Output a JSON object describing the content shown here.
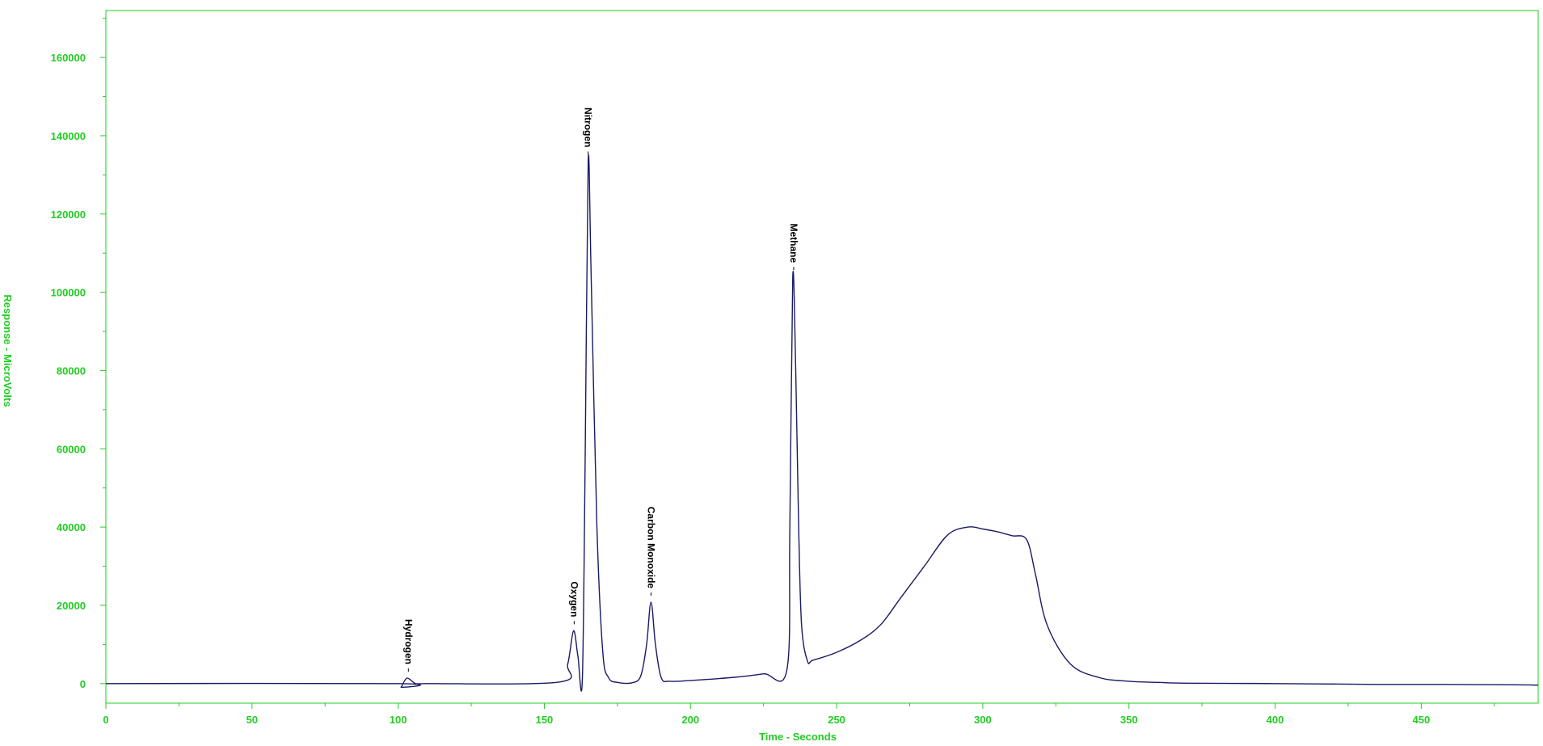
{
  "chart_data": {
    "type": "line",
    "xlabel": "Time - Seconds",
    "ylabel": "Response - MicroVolts",
    "xlim": [
      0,
      490
    ],
    "ylim": [
      -5000,
      172000
    ],
    "x_ticks": [
      0,
      50,
      100,
      150,
      200,
      250,
      300,
      350,
      400,
      450
    ],
    "y_ticks": [
      0,
      20000,
      40000,
      60000,
      80000,
      100000,
      120000,
      140000,
      160000
    ],
    "x_tick_labels": [
      "0",
      "50",
      "100",
      "150",
      "200",
      "250",
      "300",
      "350",
      "400",
      "450"
    ],
    "y_tick_labels": [
      "0",
      "20000",
      "40000",
      "60000",
      "80000",
      "100000",
      "120000",
      "140000",
      "160000"
    ],
    "grid": false,
    "colors": {
      "axis": "#22cc22",
      "trace": "#1a1a66",
      "label": "#000000"
    },
    "series": [
      {
        "x": [
          0,
          100,
          101,
          103,
          106,
          110,
          155,
          158,
          160,
          161.5,
          163,
          164,
          165,
          166,
          168,
          170,
          172,
          175,
          180,
          183,
          185,
          186.5,
          188,
          190,
          193,
          200,
          215,
          225,
          233,
          234,
          235,
          236,
          237,
          238,
          240,
          242,
          250,
          258,
          265,
          272,
          280,
          288,
          295,
          300,
          305,
          310,
          315,
          318,
          322,
          330,
          340,
          350,
          360,
          370,
          400,
          435,
          450,
          480,
          490
        ],
        "y": [
          0,
          0,
          -900,
          1400,
          0,
          0,
          400,
          5000,
          13500,
          7000,
          1200,
          60000,
          133500,
          105000,
          40000,
          8000,
          1500,
          300,
          200,
          2000,
          10000,
          20800,
          10000,
          1500,
          600,
          800,
          1600,
          2500,
          3600,
          40000,
          104000,
          80000,
          40000,
          15000,
          5800,
          6000,
          8000,
          11000,
          15000,
          22000,
          30000,
          38000,
          40000,
          39500,
          38800,
          37800,
          36800,
          28000,
          15000,
          5000,
          1500,
          600,
          300,
          100,
          0,
          -200,
          -200,
          -300,
          -400
        ]
      }
    ],
    "annotations": [
      {
        "text": "Hydrogen",
        "x": 103.5,
        "y": 1400
      },
      {
        "text": "Oxygen",
        "x": 160.2,
        "y": 13500
      },
      {
        "text": "Nitrogen",
        "x": 165.0,
        "y": 133500
      },
      {
        "text": "Carbon Monoxide",
        "x": 186.5,
        "y": 20800
      },
      {
        "text": "Methane",
        "x": 235.3,
        "y": 104000
      }
    ]
  }
}
